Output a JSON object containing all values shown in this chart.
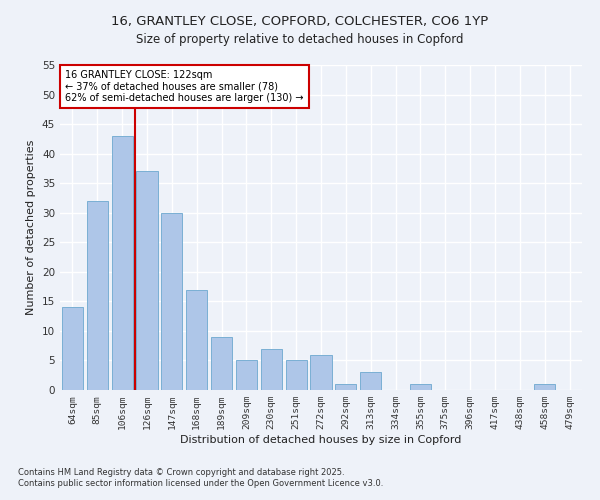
{
  "title_line1": "16, GRANTLEY CLOSE, COPFORD, COLCHESTER, CO6 1YP",
  "title_line2": "Size of property relative to detached houses in Copford",
  "xlabel": "Distribution of detached houses by size in Copford",
  "ylabel": "Number of detached properties",
  "categories": [
    "64sqm",
    "85sqm",
    "106sqm",
    "126sqm",
    "147sqm",
    "168sqm",
    "189sqm",
    "209sqm",
    "230sqm",
    "251sqm",
    "272sqm",
    "292sqm",
    "313sqm",
    "334sqm",
    "355sqm",
    "375sqm",
    "396sqm",
    "417sqm",
    "438sqm",
    "458sqm",
    "479sqm"
  ],
  "values": [
    14,
    32,
    43,
    37,
    30,
    17,
    9,
    5,
    7,
    5,
    6,
    1,
    3,
    0,
    1,
    0,
    0,
    0,
    0,
    1,
    0
  ],
  "bar_color": "#aec6e8",
  "bar_edge_color": "#7aafd4",
  "annotation_line1": "16 GRANTLEY CLOSE: 122sqm",
  "annotation_line2": "← 37% of detached houses are smaller (78)",
  "annotation_line3": "62% of semi-detached houses are larger (130) →",
  "vline_x": 2.5,
  "annotation_box_color": "#ffffff",
  "annotation_box_edge": "#cc0000",
  "vline_color": "#cc0000",
  "footer_line1": "Contains HM Land Registry data © Crown copyright and database right 2025.",
  "footer_line2": "Contains public sector information licensed under the Open Government Licence v3.0.",
  "ylim": [
    0,
    55
  ],
  "yticks": [
    0,
    5,
    10,
    15,
    20,
    25,
    30,
    35,
    40,
    45,
    50,
    55
  ],
  "bg_color": "#eef2f9",
  "grid_color": "#ffffff"
}
